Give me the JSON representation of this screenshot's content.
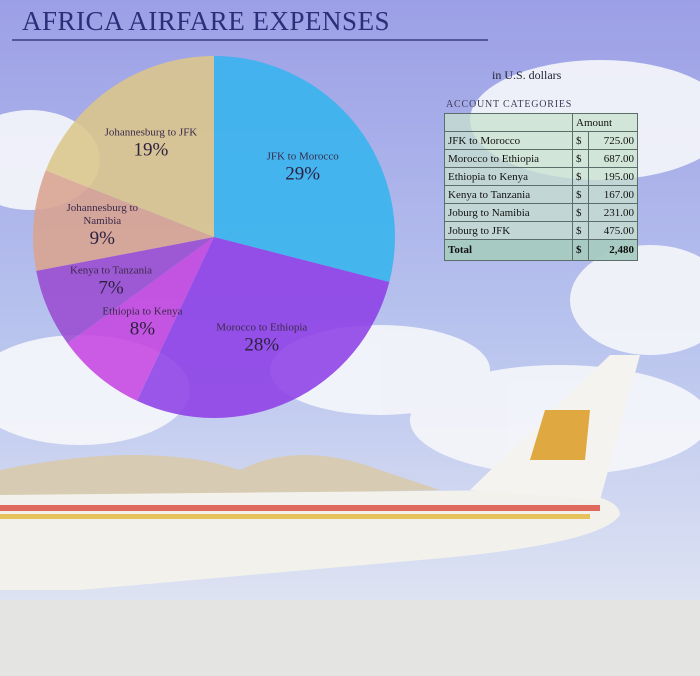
{
  "chart_data": {
    "type": "pie",
    "title": "AFRICA AIRFARE EXPENSES",
    "categories": [
      "JFK to Morocco",
      "Morocco to Ethiopia",
      "Ethiopia to Kenya",
      "Kenya to Tanzania",
      "Johannesburg to Namibia",
      "Johannesburg to JFK"
    ],
    "values": [
      29,
      28,
      8,
      7,
      9,
      19
    ],
    "value_labels": [
      "29%",
      "28%",
      "8%",
      "7%",
      "9%",
      "19%"
    ],
    "colors": [
      "#35b4ee",
      "#8d3fe6",
      "#c545e0",
      "#9a4bd0",
      "#d9a38e",
      "#dcc68a"
    ]
  },
  "table": {
    "caption": "in U.S. dollars",
    "title": "ACCOUNT CATEGORIES",
    "header": "Amount",
    "rows": [
      [
        "JFK to Morocco",
        "$",
        "725.00"
      ],
      [
        "Morocco to Ethiopia",
        "$",
        "687.00"
      ],
      [
        "Ethiopia to Kenya",
        "$",
        "195.00"
      ],
      [
        "Kenya to Tanzania",
        "$",
        "167.00"
      ],
      [
        "Joburg to Namibia",
        "$",
        "231.00"
      ],
      [
        "Joburg to JFK",
        "$",
        "475.00"
      ]
    ],
    "total": [
      "Total",
      "$",
      "2,480"
    ]
  }
}
